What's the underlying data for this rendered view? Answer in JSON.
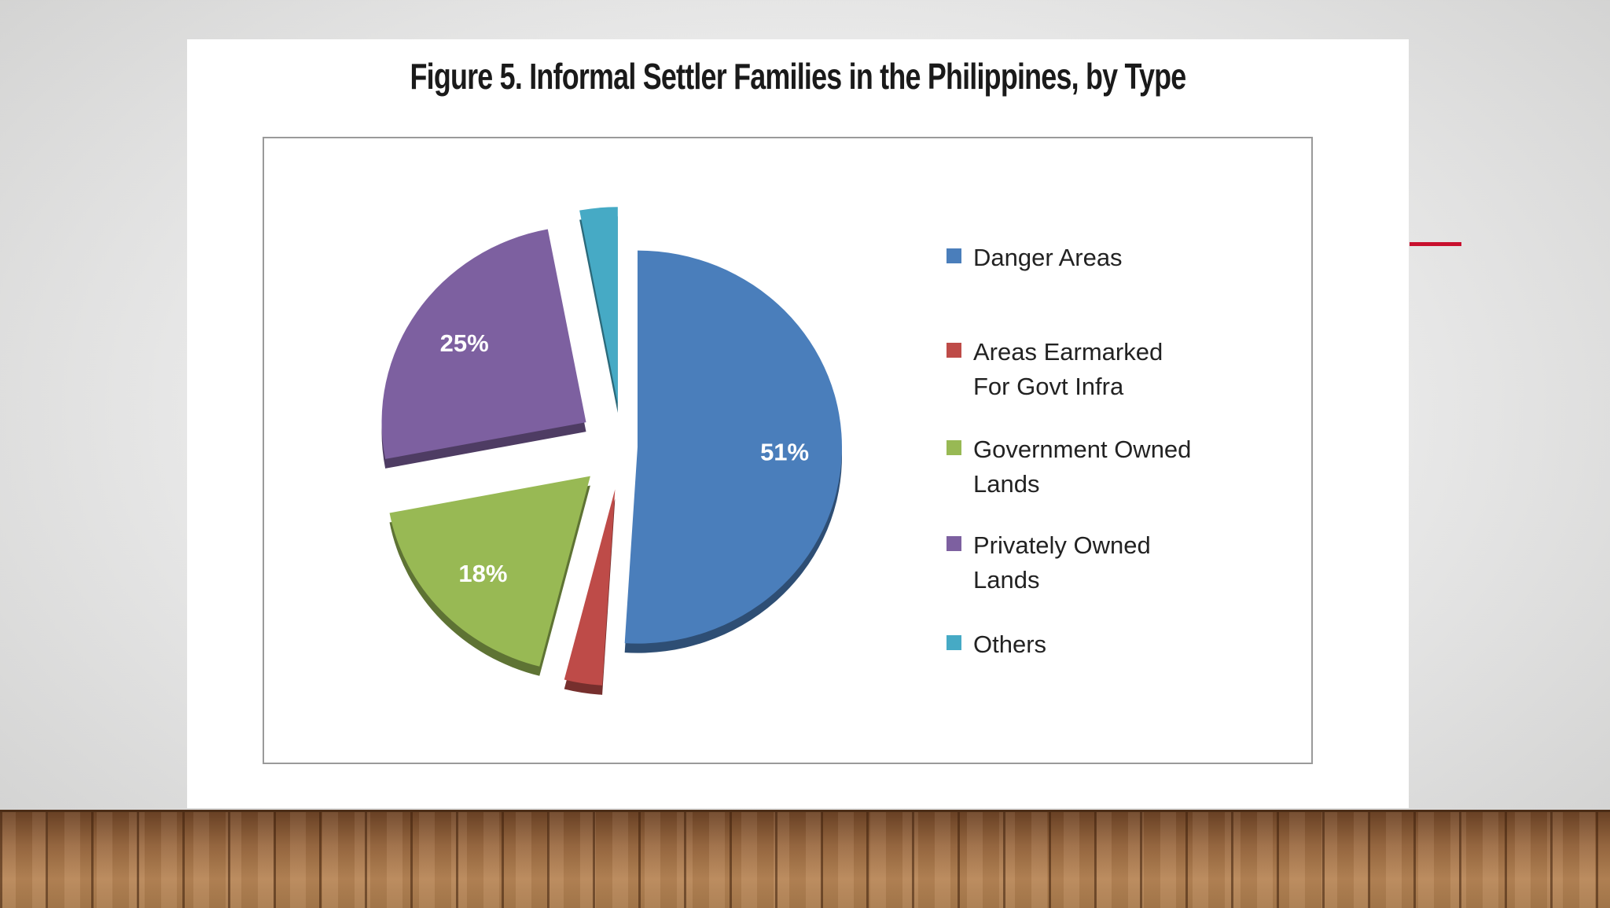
{
  "slide": {
    "accent_color": "#c8102e"
  },
  "chart_data": {
    "type": "pie",
    "title": "Figure 5. Informal Settler Families in the Philippines, by Type",
    "style": "exploded-3d",
    "legend_position": "right",
    "slices": [
      {
        "name": "Danger Areas",
        "legend_label": "Danger Areas",
        "value": 51,
        "label": "51%",
        "color": "#4a7ebb"
      },
      {
        "name": "Areas Earmarked For Govt Infra",
        "legend_label": "Areas Earmarked\nFor Govt Infra",
        "value": 3,
        "label": "",
        "color": "#be4b48"
      },
      {
        "name": "Government Owned Lands",
        "legend_label": "Government Owned\nLands",
        "value": 18,
        "label": "18%",
        "color": "#98b954"
      },
      {
        "name": "Privately Owned Lands",
        "legend_label": "Privately Owned\nLands",
        "value": 25,
        "label": "25%",
        "color": "#7d60a0"
      },
      {
        "name": "Others",
        "legend_label": "Others",
        "value": 3,
        "label": "",
        "color": "#46aac5"
      }
    ]
  }
}
